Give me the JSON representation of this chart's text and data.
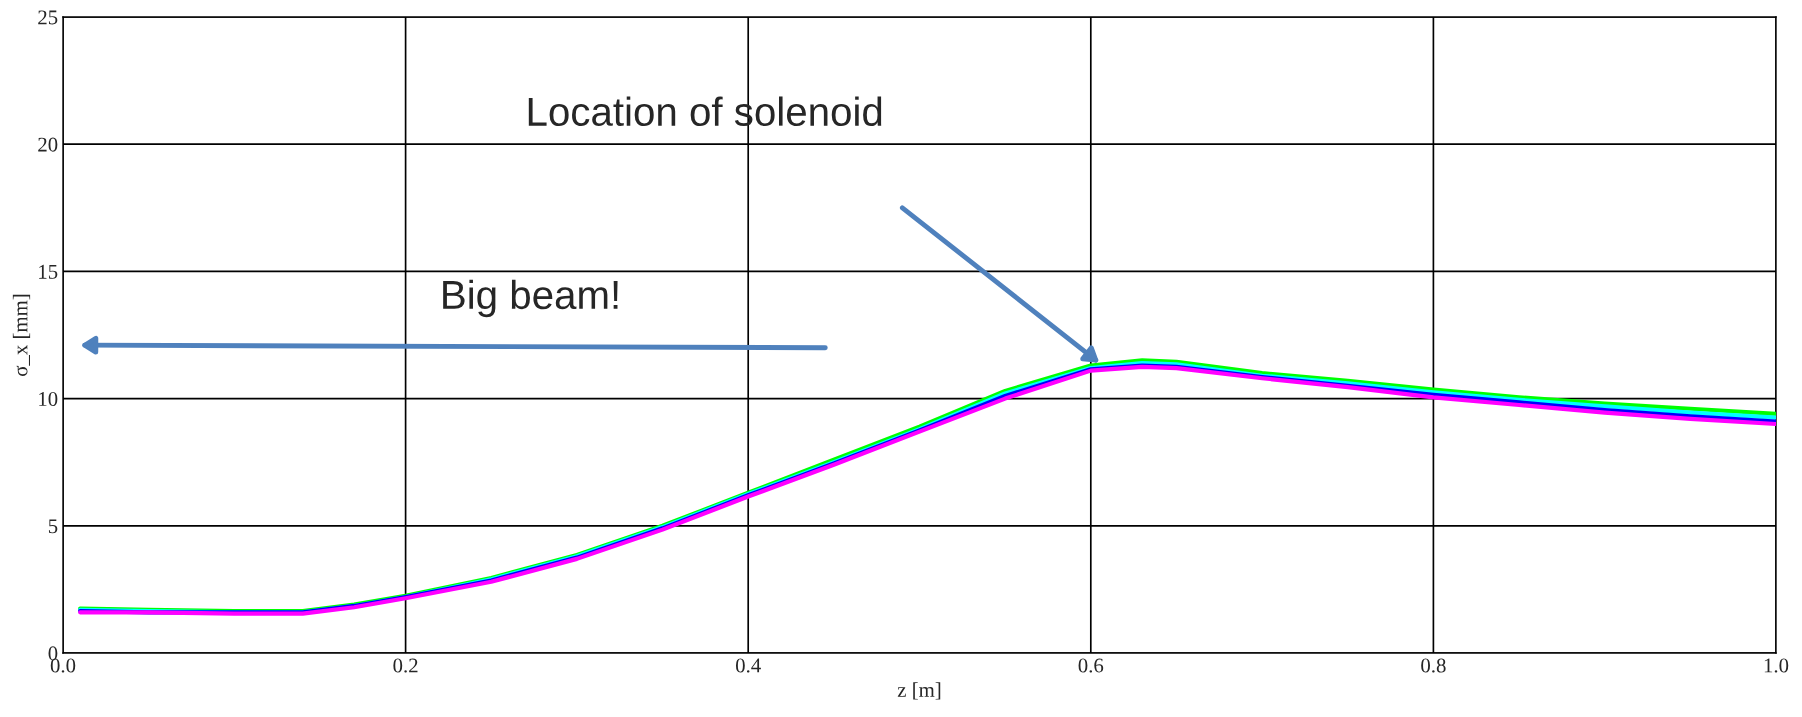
{
  "chart_data": {
    "type": "line",
    "xlabel": "z [m]",
    "ylabel": "σ_x [mm]",
    "xlim": [
      0,
      1
    ],
    "ylim": [
      0,
      25
    ],
    "xticks": [
      {
        "value": 0,
        "label": "0.0"
      },
      0.2,
      0.4,
      0.6,
      0.8,
      {
        "value": 1,
        "label": "1.0"
      }
    ],
    "yticks": [
      0,
      5,
      10,
      15,
      20,
      25
    ],
    "grid": true,
    "legend": false,
    "marker": "none",
    "line_style": "solid",
    "x": [
      0.01,
      0.05,
      0.1,
      0.14,
      0.17,
      0.2,
      0.25,
      0.3,
      0.35,
      0.4,
      0.45,
      0.5,
      0.55,
      0.6,
      0.63,
      0.65,
      0.7,
      0.75,
      0.8,
      0.85,
      0.9,
      0.95,
      1.0
    ],
    "series": [
      {
        "color": "#00ff00",
        "values": [
          1.75,
          1.7,
          1.65,
          1.65,
          1.9,
          2.25,
          2.95,
          3.85,
          5.0,
          6.3,
          7.6,
          8.9,
          10.3,
          11.3,
          11.5,
          11.45,
          11.0,
          10.7,
          10.35,
          10.05,
          9.8,
          9.6,
          9.4
        ]
      },
      {
        "color": "#00ffff",
        "values": [
          1.7,
          1.65,
          1.6,
          1.6,
          1.85,
          2.2,
          2.9,
          3.8,
          4.95,
          6.25,
          7.5,
          8.8,
          10.2,
          11.2,
          11.4,
          11.35,
          10.9,
          10.6,
          10.25,
          9.95,
          9.7,
          9.45,
          9.25
        ]
      },
      {
        "color": "#0000ff",
        "values": [
          1.65,
          1.6,
          1.6,
          1.6,
          1.85,
          2.2,
          2.85,
          3.75,
          4.9,
          6.2,
          7.45,
          8.75,
          10.1,
          11.15,
          11.3,
          11.25,
          10.85,
          10.5,
          10.15,
          9.85,
          9.55,
          9.3,
          9.1
        ]
      },
      {
        "color": "#ff00ff",
        "values": [
          1.6,
          1.6,
          1.55,
          1.55,
          1.8,
          2.15,
          2.8,
          3.7,
          4.85,
          6.15,
          7.4,
          8.7,
          10.0,
          11.1,
          11.25,
          11.2,
          10.8,
          10.45,
          10.05,
          9.75,
          9.45,
          9.2,
          9.0
        ]
      }
    ],
    "annotations": [
      "Location of solenoid",
      "Big beam!"
    ]
  }
}
